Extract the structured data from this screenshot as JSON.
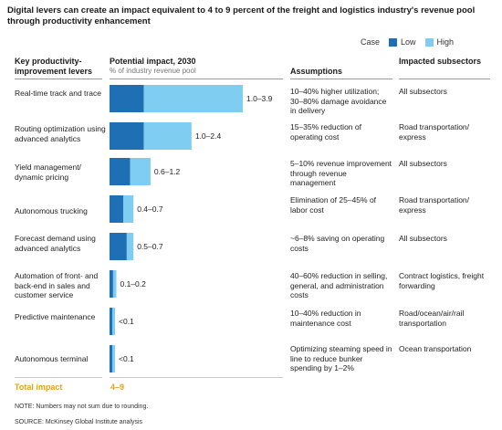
{
  "title": "Digital levers can create an impact equivalent to 4 to 9 percent of the freight and logistics industry's revenue pool through productivity enhancement",
  "legend": {
    "label": "Case",
    "low": "Low",
    "high": "High"
  },
  "colors": {
    "low": "#1f6fb5",
    "high": "#7fcdf0",
    "total": "#e3a21a"
  },
  "headers": {
    "levers": "Key productivity-improvement levers",
    "impact": "Potential impact, 2030",
    "impact_sub": "% of industry revenue pool",
    "assumptions": "Assumptions",
    "subsectors": "Impacted subsectors"
  },
  "chart_data": {
    "type": "bar",
    "orientation": "horizontal",
    "categories": [
      "Real-time track and trace",
      "Routing optimization using advanced analytics",
      "Yield management/ dynamic pricing",
      "Autonomous trucking",
      "Forecast demand using advanced analytics",
      "Automation of front-and back-end in sales and customer service",
      "Predictive maintenance",
      "Autonomous terminal"
    ],
    "series": [
      {
        "name": "Low",
        "values": [
          1.0,
          1.0,
          0.6,
          0.4,
          0.5,
          0.1,
          0.05,
          0.05
        ]
      },
      {
        "name": "High",
        "values": [
          3.9,
          2.4,
          1.2,
          0.7,
          0.7,
          0.2,
          0.1,
          0.1
        ]
      }
    ],
    "data_labels": [
      "1.0–3.9",
      "1.0–2.4",
      "0.6–1.2",
      "0.4–0.7",
      "0.5–0.7",
      "0.1–0.2",
      "<0.1",
      "<0.1"
    ],
    "xlim": [
      0,
      4.2
    ]
  },
  "rows": [
    {
      "lever": "Real-time track and trace",
      "assumption": "10–40% higher utilization; 30–80% damage avoidance in delivery",
      "subsector": "All subsectors"
    },
    {
      "lever": "Routing optimization using advanced analytics",
      "assumption": "15–35% reduction of operating cost",
      "subsector": "Road transportation/ express"
    },
    {
      "lever": "Yield management/ dynamic pricing",
      "assumption": "5–10% revenue improvement through revenue management",
      "subsector": "All subsectors"
    },
    {
      "lever": "Autonomous trucking",
      "assumption": "Elimination of 25–45% of labor cost",
      "subsector": "Road transportation/ express"
    },
    {
      "lever": "Forecast demand using advanced analytics",
      "assumption": "~6–8% saving on operating costs",
      "subsector": "All subsectors"
    },
    {
      "lever": "Automation of front- and back-end in sales and customer service",
      "assumption": "40–60% reduction in selling, general, and administration costs",
      "subsector": "Contract logistics, freight forwarding"
    },
    {
      "lever": "Predictive maintenance",
      "assumption": "10–40% reduction in maintenance cost",
      "subsector": "Road/ocean/air/rail transportation"
    },
    {
      "lever": "Autonomous terminal",
      "assumption": "Optimizing steaming speed in line to reduce bunker spending by 1–2%",
      "subsector": "Ocean transportation"
    }
  ],
  "total": {
    "label": "Total impact",
    "value": "4–9"
  },
  "note": "NOTE: Numbers may not sum due to rounding.",
  "source": "SOURCE: McKinsey Global Institute analysis"
}
